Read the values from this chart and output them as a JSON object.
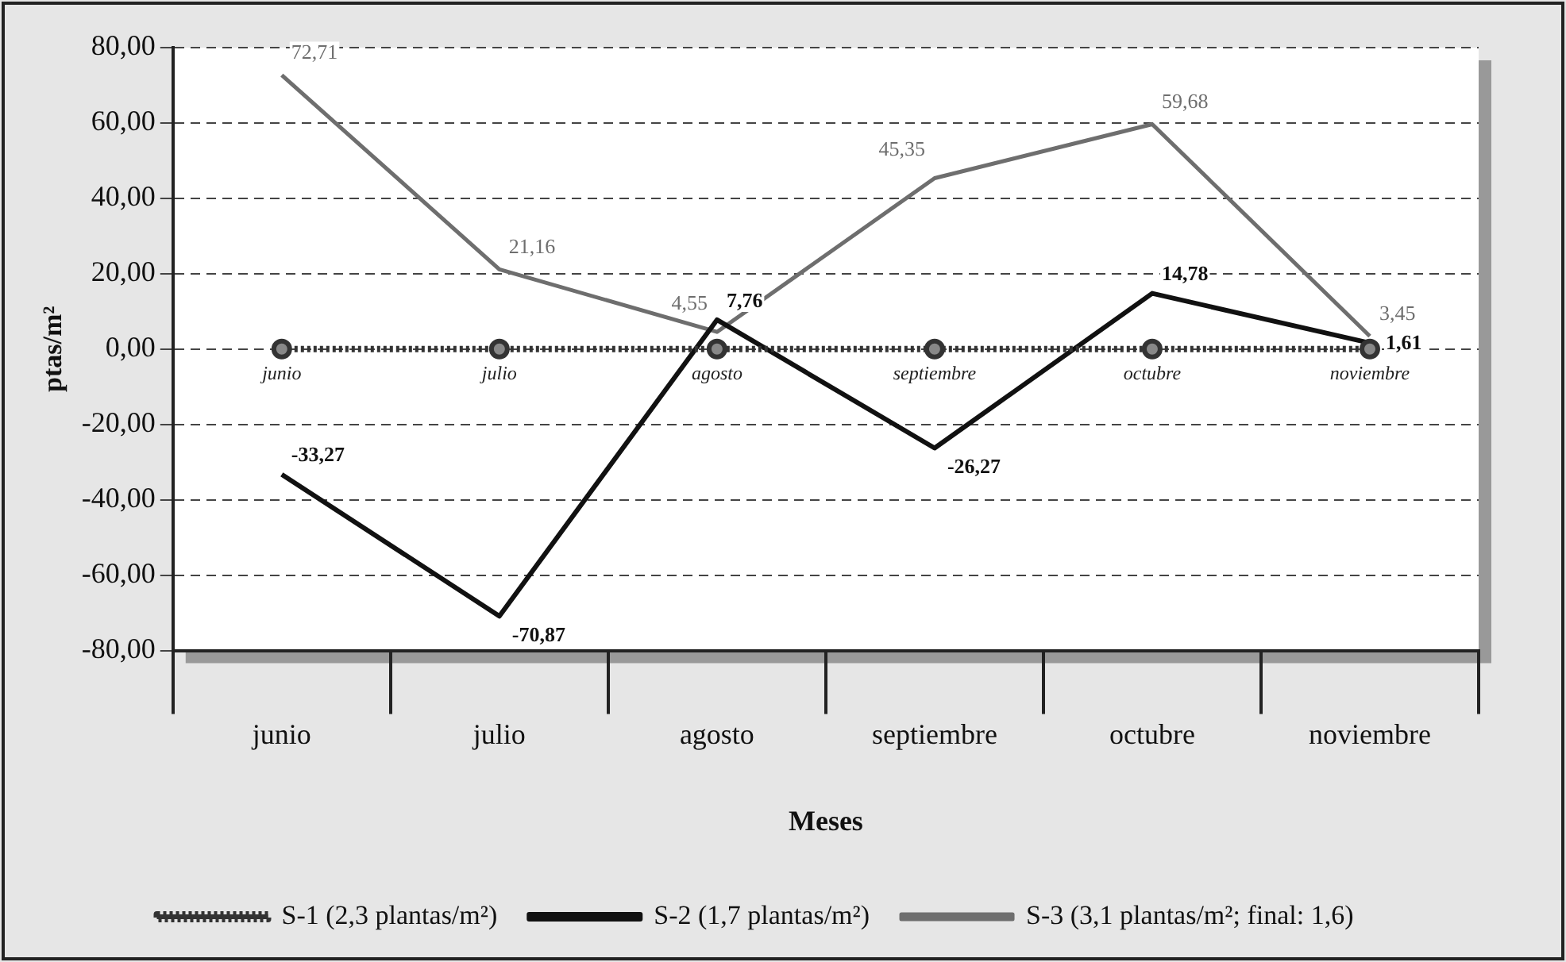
{
  "chart_data": {
    "type": "line",
    "categories": [
      "junio",
      "julio",
      "agosto",
      "septiembre",
      "octubre",
      "noviembre"
    ],
    "xlabel": "Meses",
    "ylabel": "ptas/m²",
    "ylim": [
      -80,
      80
    ],
    "yticks": [
      {
        "value": -80,
        "label": "-80,00"
      },
      {
        "value": -60,
        "label": "-60,00"
      },
      {
        "value": -40,
        "label": "-40,00"
      },
      {
        "value": -20,
        "label": "-20,00"
      },
      {
        "value": 0,
        "label": "0,00"
      },
      {
        "value": 20,
        "label": "20,00"
      },
      {
        "value": 40,
        "label": "40,00"
      },
      {
        "value": 60,
        "label": "60,00"
      },
      {
        "value": 80,
        "label": "80,00"
      }
    ],
    "grid": "y",
    "legend": "bottom",
    "series": [
      {
        "name": "S-1 (2,3 plantas/m²)",
        "color": "#333333",
        "values": [
          0,
          0,
          0,
          0,
          0,
          0
        ],
        "marker": "circle",
        "line_style": "dotted"
      },
      {
        "name": "S-2 (1,7 plantas/m²)",
        "color": "#111111",
        "values": [
          -33.27,
          -70.87,
          7.76,
          -26.27,
          14.78,
          1.61
        ],
        "marker": "none",
        "line_style": "solid",
        "value_labels": [
          "-33,27",
          "-70,87",
          "7,76",
          "-26,27",
          "14,78",
          "1,61"
        ]
      },
      {
        "name": "S-3 (3,1 plantas/m²; final: 1,6)",
        "color": "#6e6e6e",
        "values": [
          72.71,
          21.16,
          4.55,
          45.35,
          59.68,
          3.45
        ],
        "marker": "none",
        "line_style": "solid",
        "value_labels": [
          "72,71",
          "21,16",
          "4,55",
          "45,35",
          "59,68",
          "3,45"
        ]
      }
    ],
    "annotations": [
      {
        "text": "junio",
        "x": "junio",
        "y": 0
      },
      {
        "text": "julio",
        "x": "julio",
        "y": 0
      },
      {
        "text": "agosto",
        "x": "agosto",
        "y": 0
      },
      {
        "text": "septiembre",
        "x": "septiembre",
        "y": 0
      },
      {
        "text": "octubre",
        "x": "octubre",
        "y": 0
      },
      {
        "text": "noviembre",
        "x": "noviembre",
        "y": 0
      }
    ]
  }
}
